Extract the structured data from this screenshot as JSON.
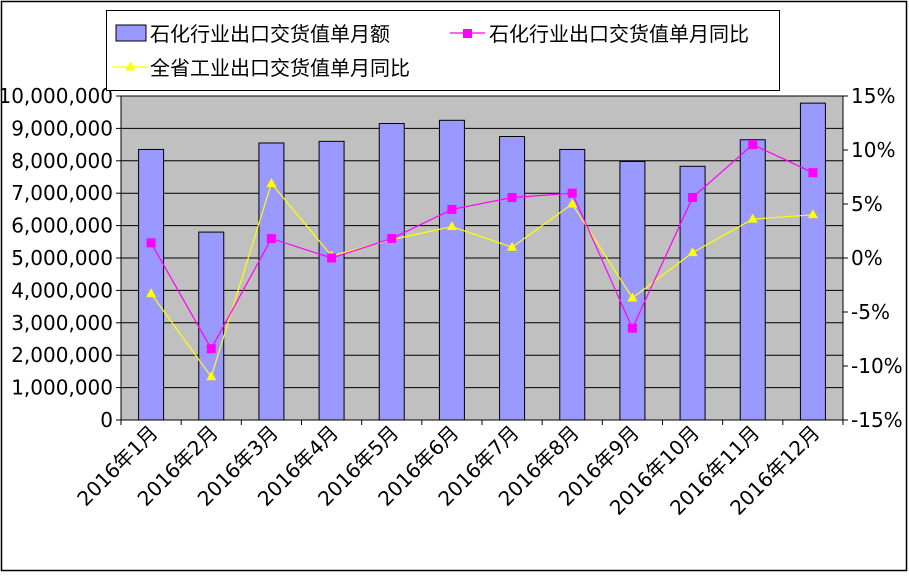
{
  "chart_data": {
    "type": "bar",
    "categories": [
      "2016年1月",
      "2016年2月",
      "2016年3月",
      "2016年4月",
      "2016年5月",
      "2016年6月",
      "2016年7月",
      "2016年8月",
      "2016年9月",
      "2016年10月",
      "2016年11月",
      "2016年12月"
    ],
    "series": [
      {
        "name": "石化行业出口交货值单月额",
        "type": "bar",
        "axis": "left",
        "color": "#9999ff",
        "values": [
          8350000,
          5800000,
          8550000,
          8600000,
          9150000,
          9250000,
          8750000,
          8350000,
          7980000,
          7830000,
          8650000,
          9780000
        ]
      },
      {
        "name": "石化行业出口交货值单月同比",
        "type": "line",
        "axis": "right",
        "color": "#ff00ff",
        "marker": "square",
        "values": [
          1.4,
          -8.4,
          1.8,
          0.0,
          1.8,
          4.5,
          5.6,
          6.0,
          -6.5,
          5.6,
          10.5,
          7.9
        ]
      },
      {
        "name": "全省工业出口交货值单月同比",
        "type": "line",
        "axis": "right",
        "color": "#ffff00",
        "marker": "triangle",
        "values": [
          -3.3,
          -11.0,
          6.9,
          0.2,
          1.7,
          2.9,
          1.0,
          5.0,
          -3.7,
          0.5,
          3.6,
          4.0
        ]
      }
    ],
    "y_left": {
      "min": 0,
      "max": 10000000,
      "step": 1000000,
      "tick_labels": [
        "0",
        "1,000,000",
        "2,000,000",
        "3,000,000",
        "4,000,000",
        "5,000,000",
        "6,000,000",
        "7,000,000",
        "8,000,000",
        "9,000,000",
        "10,000,000"
      ]
    },
    "y_right": {
      "min": -15,
      "max": 15,
      "step": 5,
      "unit": "%",
      "tick_labels": [
        "-15%",
        "-10%",
        "-5%",
        "0%",
        "5%",
        "10%",
        "15%"
      ]
    },
    "plot_background": "#c0c0c0",
    "grid": true,
    "legend_position": "top-left"
  }
}
